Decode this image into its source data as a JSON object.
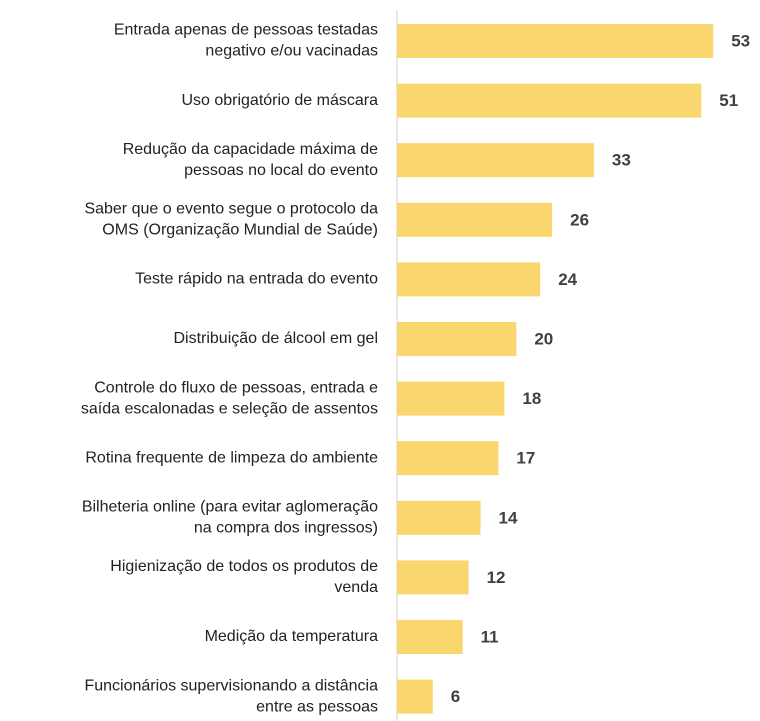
{
  "chart_data": {
    "type": "bar",
    "orientation": "horizontal",
    "categories": [
      [
        "Entrada apenas de pessoas testadas",
        "negativo e/ou vacinadas"
      ],
      [
        "Uso obrigatório de máscara"
      ],
      [
        "Redução da capacidade máxima de",
        "pessoas no local do evento"
      ],
      [
        "Saber que o evento segue o protocolo da",
        "OMS (Organização Mundial de Saúde)"
      ],
      [
        "Teste rápido na entrada do evento"
      ],
      [
        "Distribuição de álcool em gel"
      ],
      [
        "Controle do fluxo de pessoas, entrada e",
        "saída escalonadas e seleção de assentos"
      ],
      [
        "Rotina frequente de limpeza do ambiente"
      ],
      [
        "Bilheteria online (para evitar aglomeração",
        "na compra dos ingressos)"
      ],
      [
        "Higienização de todos os produtos de",
        "venda"
      ],
      [
        "Medição da temperatura"
      ],
      [
        "Funcionários supervisionando a distância",
        "entre as pessoas"
      ]
    ],
    "values": [
      53,
      51,
      33,
      26,
      24,
      20,
      18,
      17,
      14,
      12,
      11,
      6
    ],
    "color": "#fad66f",
    "xlim": [
      0,
      60
    ]
  }
}
